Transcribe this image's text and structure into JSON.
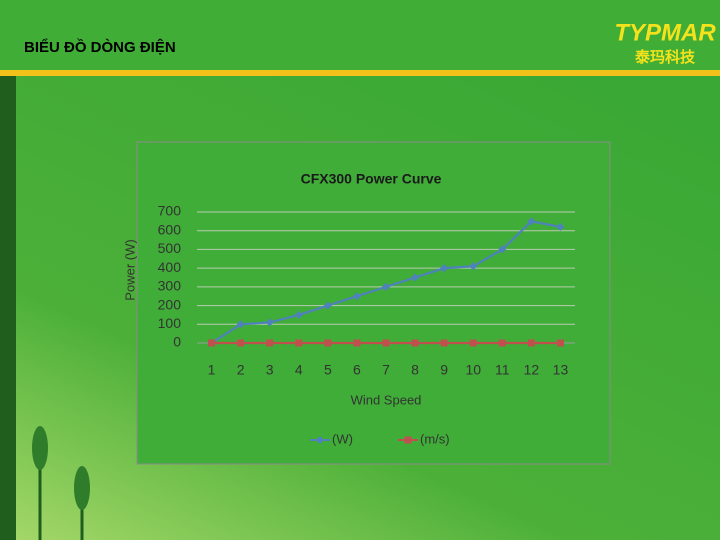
{
  "header": {
    "title": "BIỂU ĐỒ DÒNG ĐIỆN",
    "logo": "TYPMAR",
    "logo_subtitle": "泰玛科技"
  },
  "chart_data": {
    "type": "line",
    "title": "CFX300 Power Curve",
    "x_label": "Wind Speed",
    "y_label": "Power (W)",
    "categories": [
      "1",
      "2",
      "3",
      "4",
      "5",
      "6",
      "7",
      "8",
      "9",
      "10",
      "11",
      "12",
      "13"
    ],
    "series": [
      {
        "name": "(W)",
        "color": "#4f81bd",
        "marker": "diamond",
        "values": [
          0,
          100,
          110,
          150,
          200,
          250,
          300,
          350,
          400,
          410,
          500,
          650,
          620
        ]
      },
      {
        "name": "(m/s)",
        "color": "#c0504d",
        "marker": "square",
        "values": [
          0,
          0,
          0,
          0,
          0,
          0,
          0,
          0,
          0,
          0,
          0,
          0,
          0
        ]
      }
    ],
    "ylim": [
      0,
      700
    ],
    "yticks": [
      0,
      100,
      200,
      300,
      400,
      500,
      600,
      700
    ],
    "grid": true,
    "legend": "bottom"
  }
}
